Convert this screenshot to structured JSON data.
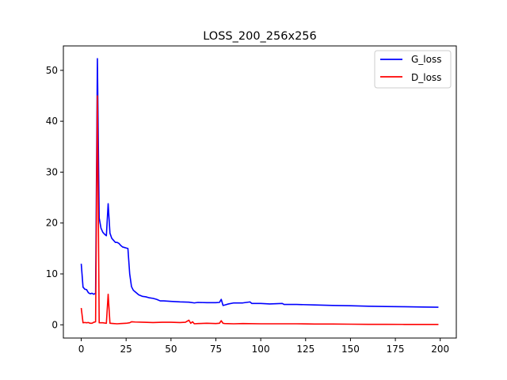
{
  "chart_data": {
    "type": "line",
    "title": "LOSS_200_256x256",
    "xlabel": "",
    "ylabel": "",
    "xlim": [
      -9.95,
      208.95
    ],
    "ylim": [
      -2.6,
      54.8
    ],
    "x_ticks": [
      0,
      25,
      50,
      75,
      100,
      125,
      150,
      175,
      200
    ],
    "y_ticks": [
      0,
      10,
      20,
      30,
      40,
      50
    ],
    "grid": false,
    "legend_position": "top-right",
    "series": [
      {
        "name": "G_loss",
        "color": "#0000ff",
        "points": [
          [
            0,
            12.0
          ],
          [
            1,
            7.4
          ],
          [
            2,
            7.0
          ],
          [
            3,
            6.9
          ],
          [
            4,
            6.3
          ],
          [
            5,
            6.1
          ],
          [
            6,
            6.2
          ],
          [
            7,
            6.0
          ],
          [
            8,
            6.2
          ],
          [
            9,
            52.3
          ],
          [
            10,
            21.0
          ],
          [
            11,
            19.0
          ],
          [
            12,
            18.2
          ],
          [
            13,
            17.8
          ],
          [
            14,
            17.5
          ],
          [
            15,
            23.8
          ],
          [
            16,
            18.0
          ],
          [
            17,
            17.0
          ],
          [
            18,
            16.6
          ],
          [
            19,
            16.2
          ],
          [
            20,
            16.2
          ],
          [
            21,
            16.0
          ],
          [
            22,
            15.6
          ],
          [
            23,
            15.3
          ],
          [
            24,
            15.2
          ],
          [
            25,
            15.1
          ],
          [
            26,
            15.0
          ],
          [
            27,
            10.0
          ],
          [
            28,
            7.5
          ],
          [
            29,
            6.8
          ],
          [
            30,
            6.5
          ],
          [
            32,
            5.9
          ],
          [
            34,
            5.6
          ],
          [
            36,
            5.5
          ],
          [
            38,
            5.3
          ],
          [
            40,
            5.2
          ],
          [
            42,
            5.0
          ],
          [
            44,
            4.7
          ],
          [
            46,
            4.7
          ],
          [
            50,
            4.6
          ],
          [
            55,
            4.5
          ],
          [
            60,
            4.45
          ],
          [
            63,
            4.3
          ],
          [
            65,
            4.4
          ],
          [
            70,
            4.35
          ],
          [
            75,
            4.35
          ],
          [
            77,
            4.4
          ],
          [
            78,
            5.0
          ],
          [
            79,
            3.8
          ],
          [
            80,
            3.9
          ],
          [
            82,
            4.1
          ],
          [
            85,
            4.3
          ],
          [
            90,
            4.3
          ],
          [
            94,
            4.5
          ],
          [
            95,
            4.2
          ],
          [
            100,
            4.2
          ],
          [
            105,
            4.1
          ],
          [
            112,
            4.2
          ],
          [
            113,
            4.0
          ],
          [
            120,
            4.0
          ],
          [
            130,
            3.9
          ],
          [
            140,
            3.8
          ],
          [
            150,
            3.75
          ],
          [
            160,
            3.65
          ],
          [
            170,
            3.6
          ],
          [
            180,
            3.55
          ],
          [
            190,
            3.5
          ],
          [
            199,
            3.45
          ]
        ]
      },
      {
        "name": "D_loss",
        "color": "#ff0000",
        "points": [
          [
            0,
            3.3
          ],
          [
            1,
            0.4
          ],
          [
            2,
            0.45
          ],
          [
            3,
            0.4
          ],
          [
            4,
            0.45
          ],
          [
            5,
            0.3
          ],
          [
            6,
            0.3
          ],
          [
            7,
            0.5
          ],
          [
            8,
            0.6
          ],
          [
            9,
            45.0
          ],
          [
            10,
            0.4
          ],
          [
            12,
            0.4
          ],
          [
            14,
            0.3
          ],
          [
            15,
            6.0
          ],
          [
            16,
            0.3
          ],
          [
            18,
            0.25
          ],
          [
            20,
            0.2
          ],
          [
            22,
            0.25
          ],
          [
            25,
            0.3
          ],
          [
            27,
            0.4
          ],
          [
            28,
            0.6
          ],
          [
            30,
            0.55
          ],
          [
            35,
            0.5
          ],
          [
            40,
            0.45
          ],
          [
            45,
            0.5
          ],
          [
            50,
            0.5
          ],
          [
            55,
            0.45
          ],
          [
            58,
            0.5
          ],
          [
            60,
            0.9
          ],
          [
            61,
            0.3
          ],
          [
            62,
            0.6
          ],
          [
            63,
            0.2
          ],
          [
            65,
            0.25
          ],
          [
            70,
            0.3
          ],
          [
            75,
            0.25
          ],
          [
            77,
            0.3
          ],
          [
            78,
            0.8
          ],
          [
            79,
            0.3
          ],
          [
            80,
            0.25
          ],
          [
            85,
            0.2
          ],
          [
            90,
            0.25
          ],
          [
            100,
            0.2
          ],
          [
            110,
            0.2
          ],
          [
            120,
            0.2
          ],
          [
            130,
            0.15
          ],
          [
            140,
            0.15
          ],
          [
            150,
            0.12
          ],
          [
            160,
            0.1
          ],
          [
            170,
            0.1
          ],
          [
            180,
            0.08
          ],
          [
            190,
            0.08
          ],
          [
            199,
            0.07
          ]
        ]
      }
    ]
  }
}
